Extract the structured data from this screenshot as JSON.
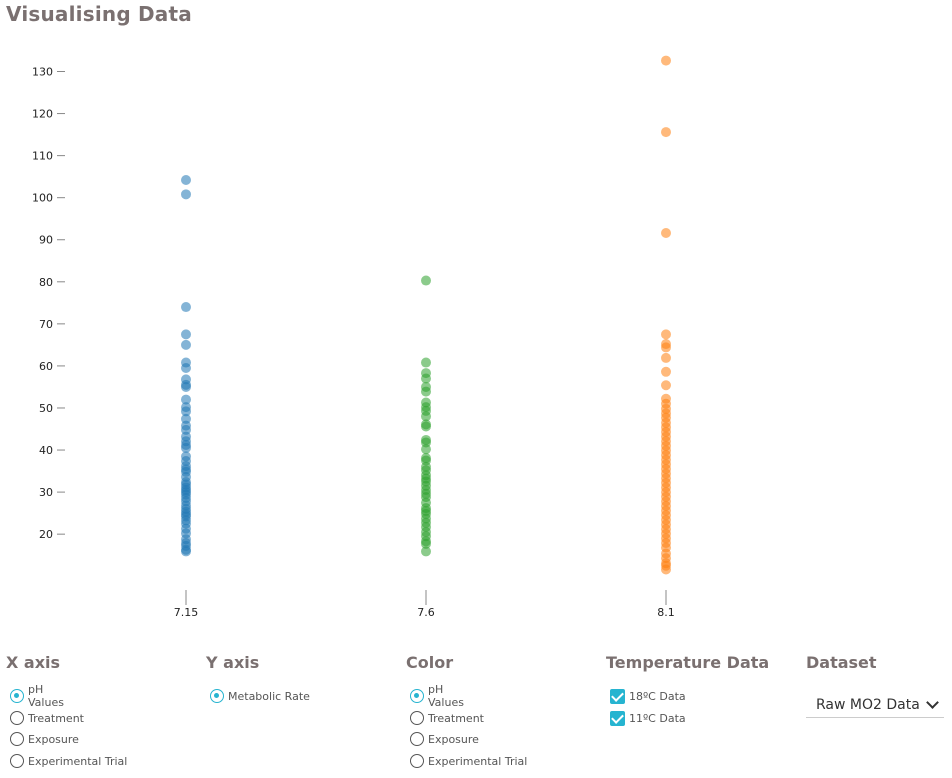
{
  "page": {
    "title": "Visualising Data"
  },
  "controls": {
    "x_axis": {
      "title": "X axis",
      "options": [
        {
          "label": "pH Values",
          "selected": true
        },
        {
          "label": "Treatment",
          "selected": false
        },
        {
          "label": "Exposure",
          "selected": false
        },
        {
          "label": "Experimental Trial",
          "selected": false
        }
      ]
    },
    "y_axis": {
      "title": "Y axis",
      "options": [
        {
          "label": "Metabolic Rate",
          "selected": true
        }
      ]
    },
    "color": {
      "title": "Color",
      "options": [
        {
          "label": "pH Values",
          "selected": true
        },
        {
          "label": "Treatment",
          "selected": false
        },
        {
          "label": "Exposure",
          "selected": false
        },
        {
          "label": "Experimental Trial",
          "selected": false
        }
      ]
    },
    "temperature": {
      "title": "Temperature Data",
      "options": [
        {
          "label": "18ºC Data",
          "checked": true
        },
        {
          "label": "11ºC Data",
          "checked": true
        }
      ]
    },
    "dataset": {
      "title": "Dataset",
      "selected": "Raw MO2 Data"
    },
    "colors": {
      "accent": "#26b4d0",
      "heading": "#7a7070"
    },
    "icons": {
      "dropdown": "chevron-down-icon",
      "radio": "radio-icon",
      "checkbox": "checkbox-icon"
    }
  },
  "chart_data": {
    "type": "scatter",
    "title": "",
    "xlabel": "",
    "ylabel": "",
    "categories": [
      "7.15",
      "7.6",
      "8.1"
    ],
    "y_ticks": [
      20,
      30,
      40,
      50,
      60,
      70,
      80,
      90,
      100,
      110,
      120,
      130
    ],
    "ylim": [
      10,
      133
    ],
    "grid": false,
    "series": [
      {
        "x": "7.15",
        "color": "#1f77b4",
        "values": [
          104.2,
          100.8,
          74,
          67.5,
          65,
          60.8,
          59.5,
          56.8,
          55.5,
          55,
          52,
          50.2,
          49.2,
          47.4,
          45.8,
          44.8,
          43.2,
          42.1,
          41.2,
          40.5,
          38.5,
          37.4,
          36.2,
          35.4,
          34.8,
          33.6,
          32.4,
          31.8,
          31.1,
          30.5,
          30,
          29.4,
          28.6,
          27.8,
          26.8,
          26,
          25.3,
          24.7,
          24.2,
          23.3,
          22.5,
          21.3,
          20.2,
          18.8,
          17.9,
          17.2,
          16.3,
          15.9
        ]
      },
      {
        "x": "7.6",
        "color": "#2ca02c",
        "values": [
          80.3,
          60.8,
          58.3,
          57,
          55,
          53.9,
          51.3,
          50.2,
          49.3,
          48,
          46.1,
          45.6,
          42.4,
          41.8,
          40.2,
          38.1,
          37.5,
          36,
          35.2,
          34,
          33.2,
          32.5,
          31.5,
          30.5,
          29.6,
          28.8,
          27.5,
          26.2,
          25.5,
          24.8,
          23.7,
          22.7,
          21.7,
          20.5,
          19.5,
          18.3,
          17.7,
          15.9
        ]
      },
      {
        "x": "8.1",
        "color": "#ff7f0e",
        "values": [
          132.6,
          115.6,
          91.6,
          67.5,
          65.2,
          64.4,
          61.9,
          58.6,
          55.4,
          52.2,
          51,
          49.8,
          48.7,
          47.7,
          46.5,
          45.4,
          44.3,
          43.2,
          42.1,
          41,
          39.9,
          38.8,
          37.7,
          36.6,
          35.5,
          34.4,
          33.3,
          32.2,
          31.1,
          30,
          28.9,
          27.8,
          26.7,
          25.6,
          24.5,
          23.4,
          22.3,
          21.2,
          20.1,
          19,
          17.9,
          16.8,
          15.4,
          14.3,
          13.1,
          12.5,
          11.6
        ]
      }
    ]
  }
}
